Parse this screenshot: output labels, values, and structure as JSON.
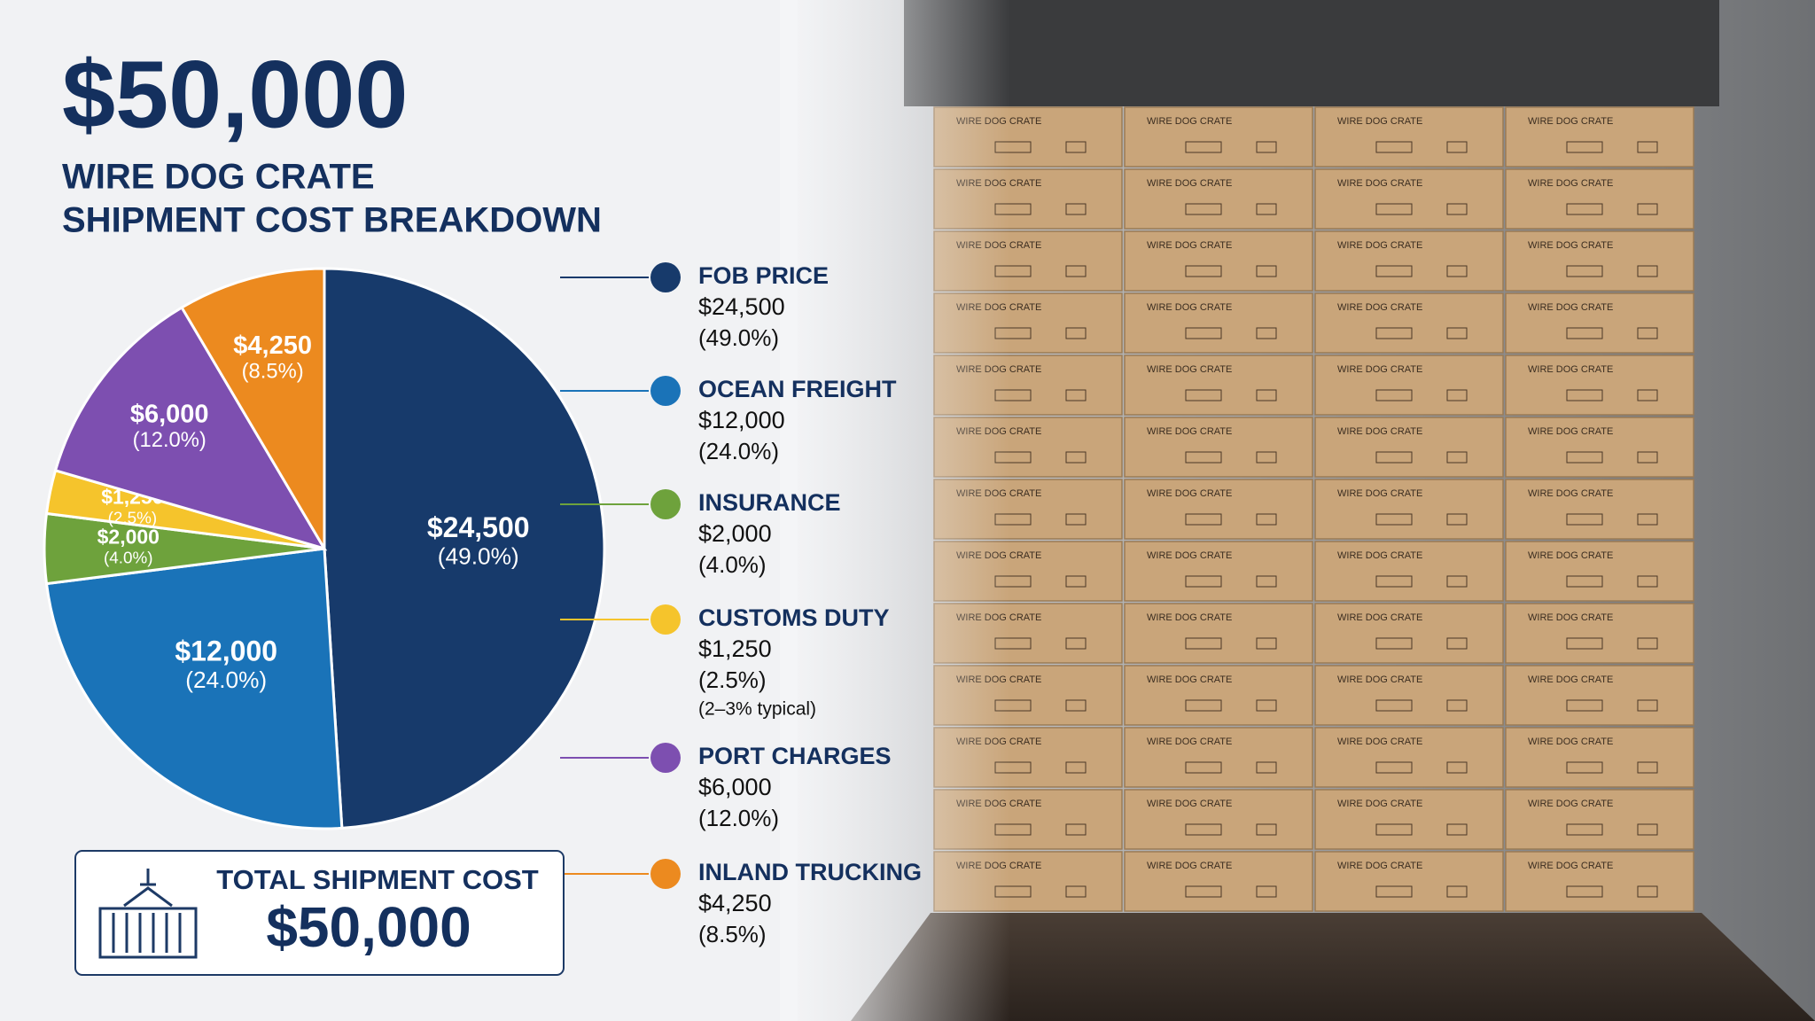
{
  "headline": "$50,000",
  "chart_data": {
    "type": "pie",
    "title": [
      "WIRE DOG CRATE",
      "SHIPMENT COST BREAKDOWN"
    ],
    "categories": [
      "FOB PRICE",
      "OCEAN FREIGHT",
      "INSURANCE",
      "CUSTOMS DUTY",
      "PORT CHARGES",
      "INLAND TRUCKING"
    ],
    "values": [
      24500,
      12000,
      2000,
      1250,
      6000,
      4250
    ],
    "value_labels": [
      "$24,500",
      "$12,000",
      "$2,000",
      "$1,250",
      "$6,000",
      "$4,250"
    ],
    "percent_labels": [
      "(49.0%)",
      "(24.0%)",
      "(4.0%)",
      "(2.5%)",
      "(12.0%)",
      "(8.5%)"
    ],
    "colors": [
      "#173a6b",
      "#1a73b8",
      "#6ea23c",
      "#f5c42c",
      "#7d4fb0",
      "#ec8a1f"
    ],
    "customs_note": "(2–3% typical)"
  },
  "total": {
    "label": "TOTAL SHIPMENT COST",
    "value": "$50,000"
  },
  "photo": {
    "box_label": "WIRE DOG CRATE"
  }
}
